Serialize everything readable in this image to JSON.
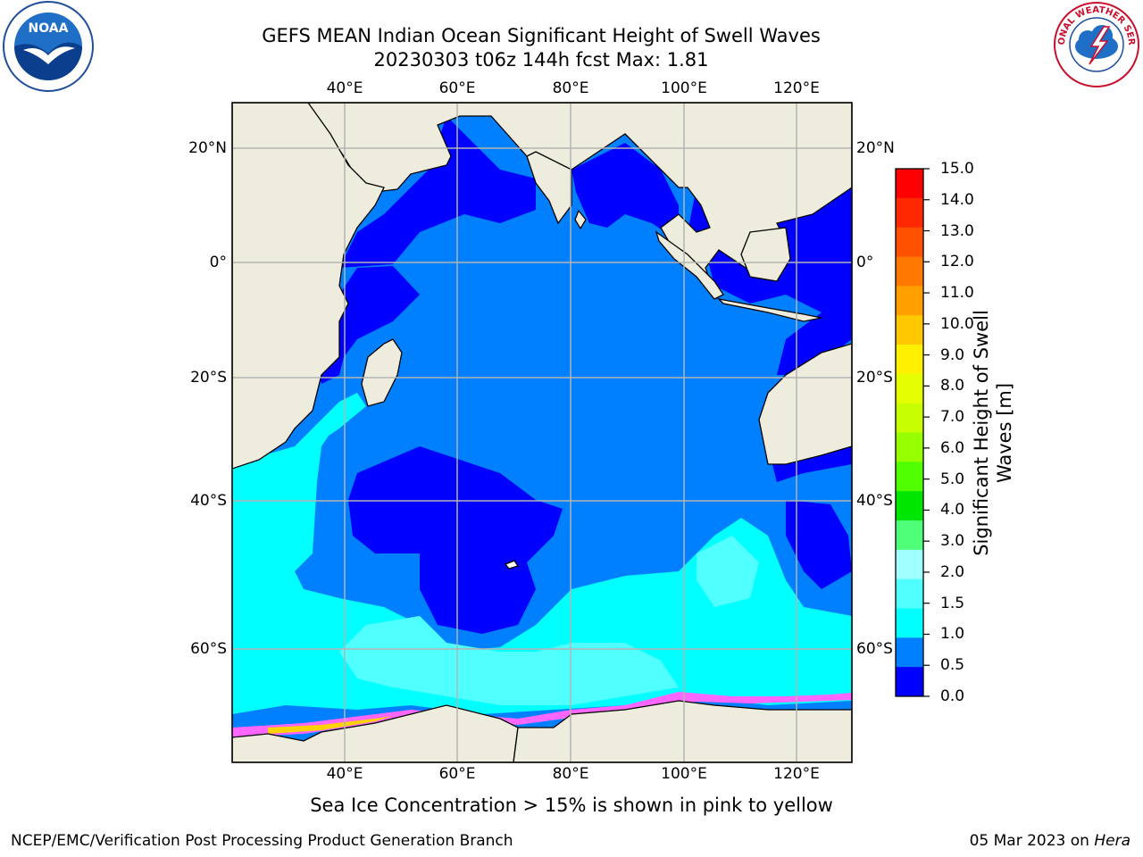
{
  "header": {
    "title_line1": "GEFS MEAN Indian Ocean Significant Height of Swell Waves",
    "title_line2": "20230303 t06z 144h fcst   Max: 1.81"
  },
  "logos": {
    "left": {
      "icon": "noaa-logo",
      "text": "NOAA"
    },
    "right": {
      "icon": "nws-logo",
      "text": "NATIONAL WEATHER SERVICE"
    }
  },
  "map": {
    "longitude_ticks": [
      "40°E",
      "60°E",
      "80°E",
      "100°E",
      "120°E"
    ],
    "latitude_ticks": [
      "20°N",
      "0°",
      "20°S",
      "40°S",
      "60°S"
    ],
    "land_color": "#eeecdc",
    "grid_color": "#b4b4b4"
  },
  "colorbar": {
    "label": "Significant Height of Swell Waves [m]",
    "label_line1": "Significant Height of Swell",
    "label_line2": "Waves [m]",
    "ticks": [
      "15.0",
      "14.0",
      "13.0",
      "12.0",
      "11.0",
      "10.0",
      "9.0",
      "8.0",
      "7.0",
      "6.0",
      "5.0",
      "4.0",
      "3.0",
      "2.0",
      "1.5",
      "1.0",
      "0.5",
      "0.0"
    ],
    "colors_top_to_bottom": [
      "#ff0000",
      "#ff2800",
      "#ff5000",
      "#ff7800",
      "#ffa000",
      "#ffc800",
      "#fff000",
      "#e6ff00",
      "#c8ff00",
      "#96ff00",
      "#50ff00",
      "#00e600",
      "#50ff78",
      "#a0ffff",
      "#50ffff",
      "#00ffff",
      "#0080ff",
      "#0000ff"
    ]
  },
  "footer": {
    "note": "Sea Ice Concentration > 15% is shown in pink to yellow",
    "credit_left": "NCEP/EMC/Verification Post Processing Product Generation Branch",
    "credit_right_date": "05 Mar 2023 on ",
    "credit_right_machine": "Hera"
  }
}
